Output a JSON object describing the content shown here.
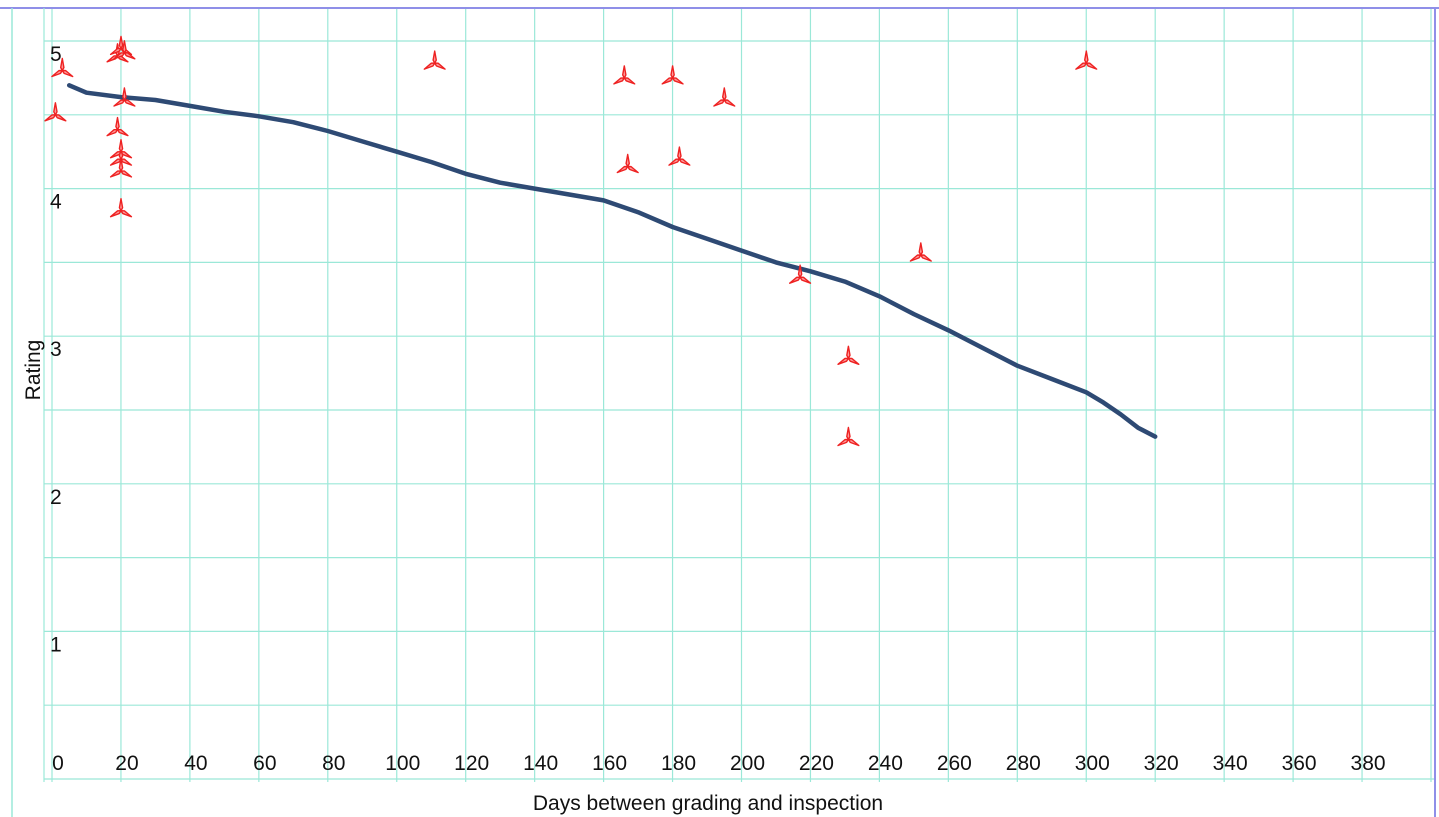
{
  "chart_data": {
    "type": "scatter",
    "title": "",
    "xlabel": "Days between grading and inspection",
    "ylabel": "Rating",
    "xlim": [
      0,
      400
    ],
    "ylim": [
      0,
      5
    ],
    "x_ticks": [
      "0",
      "20",
      "40",
      "60",
      "80",
      "100",
      "120",
      "140",
      "160",
      "180",
      "200",
      "220",
      "240",
      "260",
      "280",
      "300",
      "320",
      "340",
      "360",
      "380"
    ],
    "y_ticks": [
      "1",
      "2",
      "3",
      "4",
      "5"
    ],
    "grid": true,
    "legend": "none",
    "colors": {
      "grid": "#9be8d8",
      "frame": "#8f8fe8",
      "points": "#ee2222",
      "trend": "#2e4a74"
    },
    "series": [
      {
        "kind": "points",
        "marker": "tri-star",
        "x": [
          1,
          3,
          19,
          20,
          21,
          21,
          19,
          20,
          20,
          20,
          20,
          111,
          166,
          180,
          195,
          167,
          182,
          217,
          252,
          231,
          231,
          300
        ],
        "y": [
          4.5,
          4.8,
          4.9,
          4.95,
          4.92,
          4.6,
          4.4,
          4.2,
          4.12,
          4.25,
          3.85,
          4.85,
          4.75,
          4.75,
          4.6,
          4.15,
          4.2,
          3.4,
          3.55,
          2.85,
          2.3,
          4.85
        ]
      },
      {
        "kind": "trend",
        "x": [
          5,
          10,
          20,
          30,
          40,
          50,
          60,
          70,
          80,
          90,
          100,
          110,
          120,
          130,
          140,
          150,
          160,
          170,
          180,
          190,
          200,
          210,
          220,
          230,
          240,
          250,
          260,
          270,
          280,
          290,
          300,
          305,
          310,
          315,
          320
        ],
        "y": [
          4.7,
          4.65,
          4.62,
          4.6,
          4.56,
          4.52,
          4.49,
          4.45,
          4.39,
          4.32,
          4.25,
          4.18,
          4.1,
          4.04,
          4.0,
          3.96,
          3.92,
          3.84,
          3.74,
          3.66,
          3.58,
          3.5,
          3.44,
          3.37,
          3.27,
          3.15,
          3.04,
          2.92,
          2.8,
          2.71,
          2.62,
          2.55,
          2.47,
          2.38,
          2.32
        ]
      }
    ]
  }
}
